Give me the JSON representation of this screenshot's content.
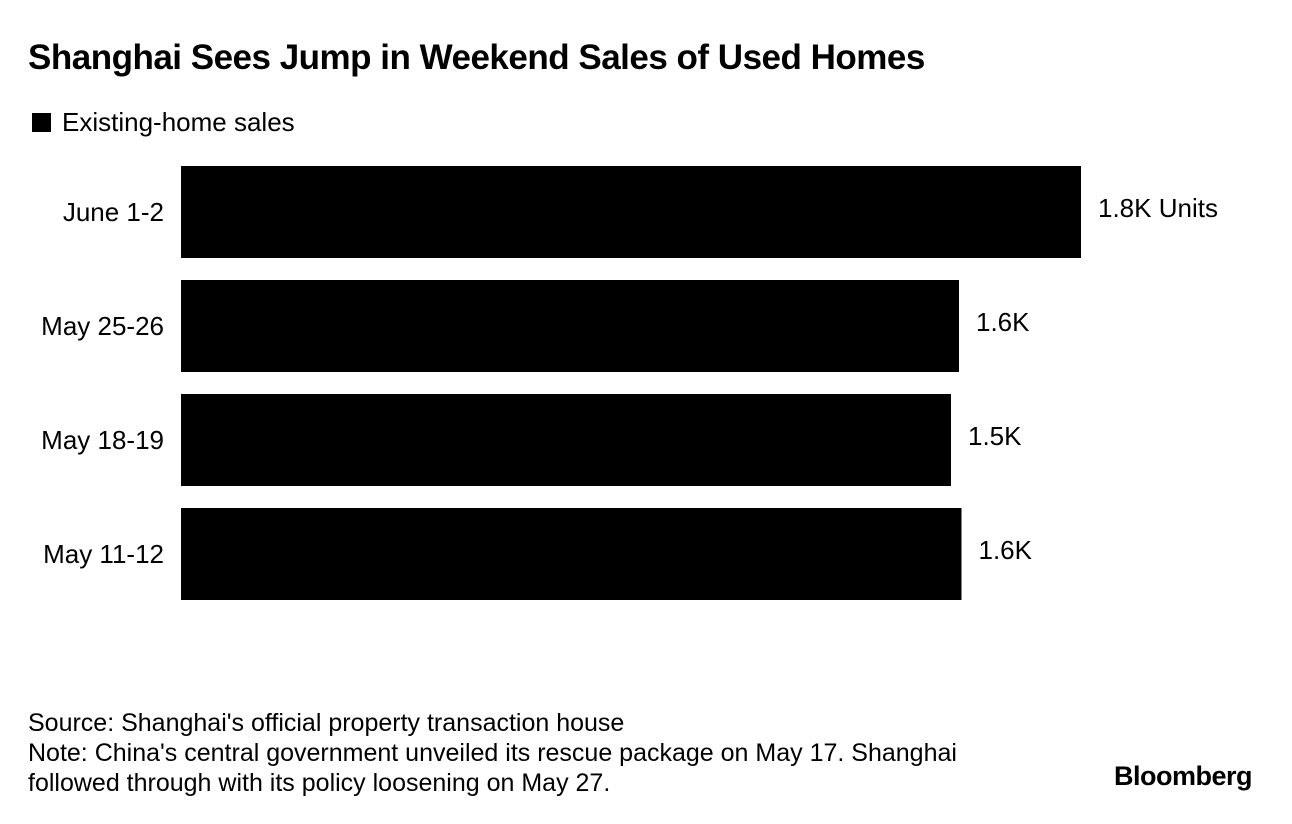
{
  "header": {
    "title": "Shanghai Sees Jump in Weekend Sales of Used Homes"
  },
  "legend": {
    "label": "Existing-home sales",
    "color": "#000000"
  },
  "chart_data": {
    "type": "bar",
    "orientation": "horizontal",
    "title": "Shanghai Sees Jump in Weekend Sales of Used Homes",
    "xlabel": "",
    "ylabel": "",
    "grid": false,
    "legend_position": "top-left",
    "xlim": [
      0,
      2000
    ],
    "unit": "Units",
    "series": [
      {
        "name": "Existing-home sales",
        "color": "#000000",
        "categories": [
          "June 1-2",
          "May 25-26",
          "May 18-19",
          "May 11-12"
        ],
        "values": [
          1800,
          1556,
          1540,
          1561
        ],
        "data_labels": [
          "1.8K Units",
          "1.6K",
          "1.5K",
          "1.6K"
        ]
      }
    ]
  },
  "footer": {
    "source": "Source: Shanghai's official property transaction house",
    "note_line1": "Note: China's central government unveiled its rescue package on May 17. Shanghai",
    "note_line2": "followed through with its policy loosening on May 27.",
    "brand": "Bloomberg"
  }
}
